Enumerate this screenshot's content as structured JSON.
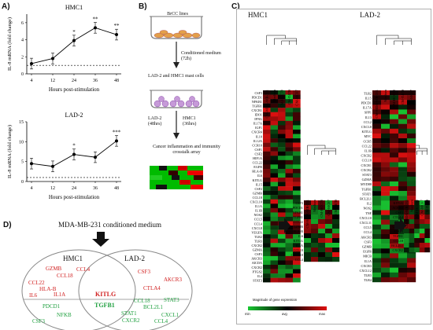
{
  "panels": {
    "A": "A)",
    "B": "B)",
    "C": "C)",
    "D": "D)"
  },
  "chart_data": [
    {
      "type": "line",
      "title": "HMC1",
      "ylabel": "IL-8 mRNA (fold change)",
      "xlabel": "Hours post-stimulation",
      "categories": [
        "4",
        "12",
        "24",
        "36",
        "48"
      ],
      "values": [
        1.2,
        1.8,
        3.9,
        5.4,
        4.6
      ],
      "ylim": [
        0,
        7
      ],
      "yticks": [
        "0",
        "2",
        "4",
        "6"
      ],
      "baseline": 1,
      "sig": [
        "",
        "",
        "*",
        "**",
        "**"
      ]
    },
    {
      "type": "line",
      "title": "LAD-2",
      "ylabel": "IL-8 mRNA (fold change)",
      "xlabel": "Hours post-stimulation",
      "categories": [
        "4",
        "12",
        "24",
        "36",
        "48"
      ],
      "values": [
        4.5,
        3.8,
        6.8,
        6.1,
        10.2
      ],
      "ylim": [
        0,
        15
      ],
      "yticks": [
        "0",
        "5",
        "10",
        "15"
      ],
      "baseline": 1,
      "sig": [
        "",
        "",
        "*",
        "",
        "***"
      ]
    }
  ],
  "workflow": {
    "cells_label": "BrCC lines",
    "medium_label": "Conditioned medium (72h)",
    "mast_label": "LAD-2 and HMC1 mast cells",
    "lad2_label": "LAD-2 (48hrs)",
    "hmc1_label": "HMC1 (36hrs)",
    "array_label": "Cancer inflammation and immunity crosstalk array"
  },
  "heatmap": {
    "hmc1_title": "HMC1",
    "lad2_title": "LAD-2",
    "hmc1_cols": [
      "CM-MDA-MB-231",
      "Medium",
      "CM-HCC70",
      "CM-T47D",
      "CM-MCF7"
    ],
    "hmc1_genes": [
      "CSF3",
      "PDCD1",
      "NFKB1",
      "TGFB1",
      "CXCR1",
      "IDO1",
      "IFNG",
      "IL17A",
      "IGF1",
      "CXCR4",
      "IL10",
      "IL12A",
      "CCR10",
      "CSF1",
      "CSF2",
      "HIF1A",
      "CCL22",
      "EGFR",
      "HLA-B",
      "IL6",
      "KITLG",
      "IL15",
      "CSF2",
      "GZMB",
      "CCL18",
      "CXCL10",
      "IL1A",
      "IL1B",
      "NOS2",
      "CCL5",
      "CCL4",
      "CXCL8",
      "VEGFA",
      "TLR2",
      "TLR3",
      "CXCR2",
      "GZMA",
      "CSF3",
      "AKCR3",
      "AICDA",
      "CXCR2",
      "PTGS2",
      "IL4",
      "STAT3"
    ],
    "hmc1_sub_cols": [
      "CM-MDA-MB-231",
      "Medium",
      "CM-HCC70",
      "CM-MCF7",
      "CM-T47D"
    ],
    "hmc1_sub_genes": [
      "CSF3",
      "PDCD1",
      "NFKB1",
      "TGFB1",
      "CCL22",
      "GZMB",
      "HLA-B",
      "IL6",
      "KITLG",
      "IL1A",
      "CCL18",
      "CXCL10",
      "CCL4"
    ],
    "lad2_cols": [
      "CM-MDA-MB-231",
      "Medium",
      "CM-HCC70",
      "CM-T47D",
      "CM-MCF7"
    ],
    "lad2_genes": [
      "TLR2",
      "IL15",
      "PDCD1",
      "IL17A",
      "SPP1",
      "IL13",
      "CCL2",
      "CXCL8",
      "KITLG",
      "MYC",
      "CCR5",
      "CCL22",
      "IL1B",
      "CXCR2",
      "CCL18",
      "CXCR1",
      "CXCR2",
      "STAT3",
      "GZMA",
      "MYD88",
      "TGFB1",
      "STAT1",
      "BCL2L1",
      "IL2",
      "NOS2",
      "TNF",
      "CXCL10",
      "CXCL11",
      "CCL5",
      "CCL4",
      "AKCR3",
      "CSF3",
      "GZMB",
      "EGFR",
      "MICB",
      "IL1A",
      "CXCR3",
      "CXCL12",
      "TLR3",
      "TLR4"
    ],
    "lad2_sub_cols": [
      "CM-MDA-MB-231",
      "Medium",
      "CM-HCC70",
      "CM-MCF7",
      "CM-T47D"
    ],
    "lad2_sub_genes": [
      "KITLG",
      "ACKR3",
      "CSF3",
      "CTLA4",
      "CCL4",
      "CXCR1",
      "STAT3",
      "TGFB1",
      "CCL18",
      "BCL2L1",
      "CXCR2"
    ],
    "legend_title": "Magnitude of gene expression",
    "legend_min": "min",
    "legend_avg": "avg",
    "legend_max": "max",
    "colors": {
      "low": "#19c832",
      "mid": "#000000",
      "high": "#e01010"
    }
  },
  "venn": {
    "title": "MDA-MB-231 conditioned medium",
    "left": "HMC1",
    "right": "LAD-2",
    "hmc1_up": [
      "GZMB",
      "CCL4",
      "CCL18",
      "CCL22",
      "HLA-B",
      "IL6",
      "IL1A"
    ],
    "hmc1_down": [
      "PDCD1",
      "NFKB",
      "CSF3"
    ],
    "shared_up": "KITLG",
    "shared_down": "TGFB1",
    "lad2_up": [
      "CSF3",
      "AKCR3",
      "CTLA4"
    ],
    "lad2_down": [
      "CCL18",
      "STAT3",
      "BCL2L1",
      "STAT1",
      "CXCL1",
      "CXCR2",
      "CCL4"
    ]
  }
}
